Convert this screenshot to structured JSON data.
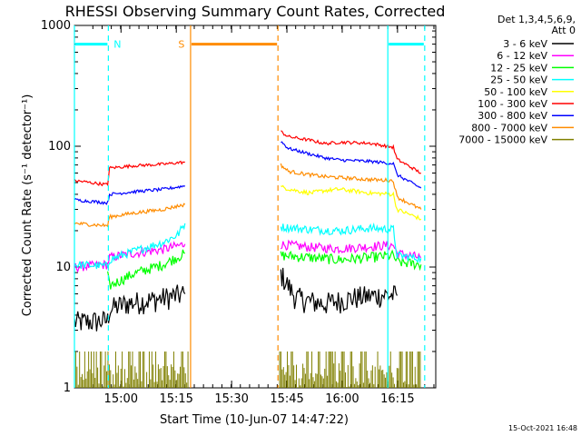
{
  "chart_data": {
    "type": "line",
    "title": "RHESSI Observing Summary Count Rates, Corrected",
    "xlabel": "Start Time (10-Jun-07 14:47:22)",
    "ylabel": "Corrected Count Rate (s⁻¹ detector⁻¹)",
    "x_unit": "minutes after 14:47:22",
    "xlim": [
      0,
      98
    ],
    "ylim": [
      1,
      1000
    ],
    "yscale": "log",
    "xticks": [
      {
        "t": 12.63,
        "label": "15:00"
      },
      {
        "t": 27.63,
        "label": "15:15"
      },
      {
        "t": 42.63,
        "label": "15:30"
      },
      {
        "t": 57.63,
        "label": "15:45"
      },
      {
        "t": 72.63,
        "label": "16:00"
      },
      {
        "t": 87.63,
        "label": "16:15"
      }
    ],
    "yticks": [
      {
        "v": 1,
        "label": "1"
      },
      {
        "v": 10,
        "label": "10"
      },
      {
        "v": 100,
        "label": "100"
      },
      {
        "v": 1000,
        "label": "1000"
      }
    ],
    "legend_header": [
      "Det 1,3,4,5,6,9,",
      "Att 0"
    ],
    "legend_position": "right",
    "series": [
      {
        "name": "3 - 6 keV",
        "color": "#000000",
        "segments": [
          [
            [
              0,
              3.5
            ],
            [
              9,
              3.6
            ],
            [
              9.5,
              4.5
            ],
            [
              14,
              5
            ],
            [
              22,
              5.4
            ],
            [
              30,
              6.0
            ]
          ],
          [
            [
              56,
              8.8
            ],
            [
              58,
              7
            ],
            [
              60,
              5.6
            ],
            [
              64,
              5.2
            ],
            [
              68,
              5.0
            ],
            [
              76,
              5.6
            ],
            [
              84,
              5.9
            ],
            [
              87.5,
              5.8
            ]
          ]
        ]
      },
      {
        "name": "6 - 12 keV",
        "color": "#ff00ff",
        "segments": [
          [
            [
              0,
              10
            ],
            [
              9,
              10.5
            ],
            [
              9.5,
              12
            ],
            [
              16,
              13
            ],
            [
              24,
              14
            ],
            [
              30,
              15.5
            ]
          ],
          [
            [
              56,
              15.4
            ],
            [
              64,
              14.6
            ],
            [
              72,
              14.2
            ],
            [
              80,
              14.8
            ],
            [
              86.5,
              15.2
            ],
            [
              87.5,
              13
            ],
            [
              94,
              12
            ]
          ]
        ]
      },
      {
        "name": "12 - 25 keV",
        "color": "#00ff00",
        "segments": [
          [
            [
              9,
              8.5
            ],
            [
              9.5,
              7
            ],
            [
              16,
              8.8
            ],
            [
              24,
              10.5
            ],
            [
              30,
              13
            ]
          ],
          [
            [
              56,
              12.5
            ],
            [
              64,
              12
            ],
            [
              72,
              11.5
            ],
            [
              80,
              12
            ],
            [
              86.5,
              12.5
            ],
            [
              87.5,
              11
            ],
            [
              94,
              10.5
            ]
          ]
        ]
      },
      {
        "name": "25 - 50 keV",
        "color": "#00ffff",
        "segments": [
          [
            [
              0,
              10.5
            ],
            [
              9,
              10.2
            ],
            [
              9.5,
              11.5
            ],
            [
              16,
              13.5
            ],
            [
              24,
              16
            ],
            [
              28,
              18.5
            ],
            [
              30,
              23
            ]
          ],
          [
            [
              56,
              21.5
            ],
            [
              64,
              20.5
            ],
            [
              72,
              20
            ],
            [
              80,
              21
            ],
            [
              86.5,
              20.5
            ],
            [
              87.5,
              12.5
            ],
            [
              94,
              11.8
            ]
          ]
        ]
      },
      {
        "name": "50 - 100 keV",
        "color": "#ffff00",
        "segments": [
          [
            [
              56,
              46
            ],
            [
              60,
              43
            ],
            [
              64,
              41
            ],
            [
              68,
              43
            ],
            [
              72,
              44
            ],
            [
              80,
              41
            ],
            [
              86.5,
              40
            ],
            [
              87.5,
              30
            ],
            [
              94,
              25
            ]
          ]
        ]
      },
      {
        "name": "100 - 300 keV",
        "color": "#ff0000",
        "segments": [
          [
            [
              0,
              52
            ],
            [
              9,
              48
            ],
            [
              9.5,
              66
            ],
            [
              16,
              69
            ],
            [
              24,
              71
            ],
            [
              30,
              74
            ]
          ],
          [
            [
              56,
              132
            ],
            [
              58,
              120
            ],
            [
              64,
              112
            ],
            [
              68,
              105
            ],
            [
              72,
              108
            ],
            [
              80,
              106
            ],
            [
              86.5,
              98
            ],
            [
              87.5,
              78
            ],
            [
              94,
              60
            ]
          ]
        ]
      },
      {
        "name": "300 - 800 keV",
        "color": "#0000ff",
        "segments": [
          [
            [
              0,
              36
            ],
            [
              9,
              34
            ],
            [
              9.5,
              40
            ],
            [
              16,
              42
            ],
            [
              24,
              44
            ],
            [
              30,
              47
            ]
          ],
          [
            [
              56,
              110
            ],
            [
              58,
              96
            ],
            [
              64,
              86
            ],
            [
              68,
              80
            ],
            [
              72,
              77
            ],
            [
              80,
              75
            ],
            [
              86.5,
              72
            ],
            [
              87.5,
              58
            ],
            [
              94,
              45
            ]
          ]
        ]
      },
      {
        "name": "800 - 7000 keV",
        "color": "#ff8c00",
        "segments": [
          [
            [
              0,
              23
            ],
            [
              9,
              22
            ],
            [
              9.5,
              26
            ],
            [
              16,
              28
            ],
            [
              24,
              30
            ],
            [
              30,
              33
            ]
          ],
          [
            [
              56,
              70
            ],
            [
              58,
              62
            ],
            [
              64,
              58
            ],
            [
              68,
              56
            ],
            [
              72,
              55
            ],
            [
              80,
              53
            ],
            [
              86.5,
              52
            ],
            [
              87.5,
              38
            ],
            [
              94,
              30
            ]
          ]
        ]
      },
      {
        "name": "7000 - 15000 keV",
        "color": "#808000",
        "segments": [
          [
            [
              0,
              1.5
            ],
            [
              9,
              1.5
            ],
            [
              10,
              1.3
            ],
            [
              20,
              1.3
            ],
            [
              30,
              1.3
            ],
            [
              56,
              1.5
            ],
            [
              70,
              1.4
            ],
            [
              80,
              1.4
            ],
            [
              94,
              1.5
            ]
          ]
        ]
      }
    ],
    "markers": [
      {
        "label": "N",
        "color": "#00ffff",
        "solid": 0,
        "dashed": 9.2
      },
      {
        "label": "S",
        "color": "#ff8c00",
        "solid": 31.5,
        "dashed": 55.2
      },
      {
        "label": "",
        "color": "#00ffff",
        "solid": 85.0,
        "dashed": 95.0
      }
    ],
    "markers_level": 700,
    "footer_date": "15-Oct-2021 16:48"
  }
}
